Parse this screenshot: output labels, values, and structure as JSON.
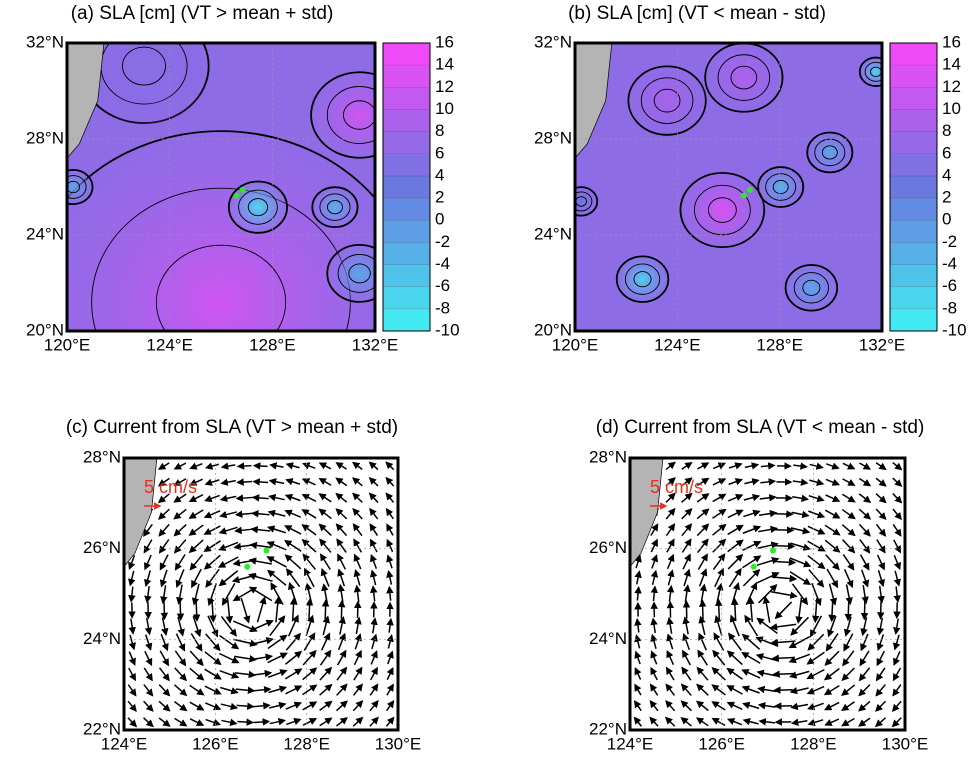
{
  "panels": [
    {
      "title": "(a) SLA [cm] (VT > mean + std)",
      "xlim": [
        120,
        132
      ],
      "xticks": [
        {
          "value": 120,
          "label": "120°E"
        },
        {
          "value": 124,
          "label": "124°E"
        },
        {
          "value": 128,
          "label": "128°E"
        },
        {
          "value": 132,
          "label": "132°E"
        }
      ],
      "ylim": [
        20,
        32
      ],
      "yticks": [
        {
          "value": 20,
          "label": "20°N"
        },
        {
          "value": 24,
          "label": "24°N"
        },
        {
          "value": 28,
          "label": "28°N"
        },
        {
          "value": 32,
          "label": "32°N"
        }
      ],
      "colorbar": {
        "lim": [
          -10,
          16
        ],
        "ticks": [
          16,
          14,
          12,
          10,
          8,
          6,
          4,
          2,
          0,
          -2,
          -4,
          -6,
          -8,
          -10
        ],
        "colormap": [
          "#40f2f2",
          "#6a78e0",
          "#fa46fa"
        ]
      }
    },
    {
      "title": "(b) SLA [cm] (VT < mean - std)",
      "xlim": [
        120,
        132
      ],
      "xticks": [
        {
          "value": 120,
          "label": "120°E"
        },
        {
          "value": 124,
          "label": "124°E"
        },
        {
          "value": 128,
          "label": "128°E"
        },
        {
          "value": 132,
          "label": "132°E"
        }
      ],
      "ylim": [
        20,
        32
      ],
      "yticks": [
        {
          "value": 20,
          "label": "20°N"
        },
        {
          "value": 24,
          "label": "24°N"
        },
        {
          "value": 28,
          "label": "28°N"
        },
        {
          "value": 32,
          "label": "32°N"
        }
      ],
      "colorbar": {
        "lim": [
          -10,
          16
        ],
        "ticks": [
          16,
          14,
          12,
          10,
          8,
          6,
          4,
          2,
          0,
          -2,
          -4,
          -6,
          -8,
          -10
        ],
        "colormap": [
          "#40f2f2",
          "#6a78e0",
          "#fa46fa"
        ]
      }
    },
    {
      "title": "(c) Current from SLA (VT > mean + std)",
      "xlim": [
        124,
        130
      ],
      "xticks": [
        {
          "value": 124,
          "label": "124°E"
        },
        {
          "value": 126,
          "label": "126°E"
        },
        {
          "value": 128,
          "label": "128°E"
        },
        {
          "value": 130,
          "label": "130°E"
        }
      ],
      "ylim": [
        22,
        28
      ],
      "yticks": [
        {
          "value": 22,
          "label": "22°N"
        },
        {
          "value": 24,
          "label": "24°N"
        },
        {
          "value": 26,
          "label": "26°N"
        },
        {
          "value": 28,
          "label": "28°N"
        }
      ],
      "scale_label": "5 cm/s"
    },
    {
      "title": "(d) Current from SLA (VT < mean - std)",
      "xlim": [
        124,
        130
      ],
      "xticks": [
        {
          "value": 124,
          "label": "124°E"
        },
        {
          "value": 126,
          "label": "126°E"
        },
        {
          "value": 128,
          "label": "128°E"
        },
        {
          "value": 130,
          "label": "130°E"
        }
      ],
      "ylim": [
        22,
        28
      ],
      "yticks": [
        {
          "value": 22,
          "label": "22°N"
        },
        {
          "value": 24,
          "label": "24°N"
        },
        {
          "value": 26,
          "label": "26°N"
        },
        {
          "value": 28,
          "label": "28°N"
        }
      ],
      "scale_label": "5 cm/s"
    }
  ]
}
